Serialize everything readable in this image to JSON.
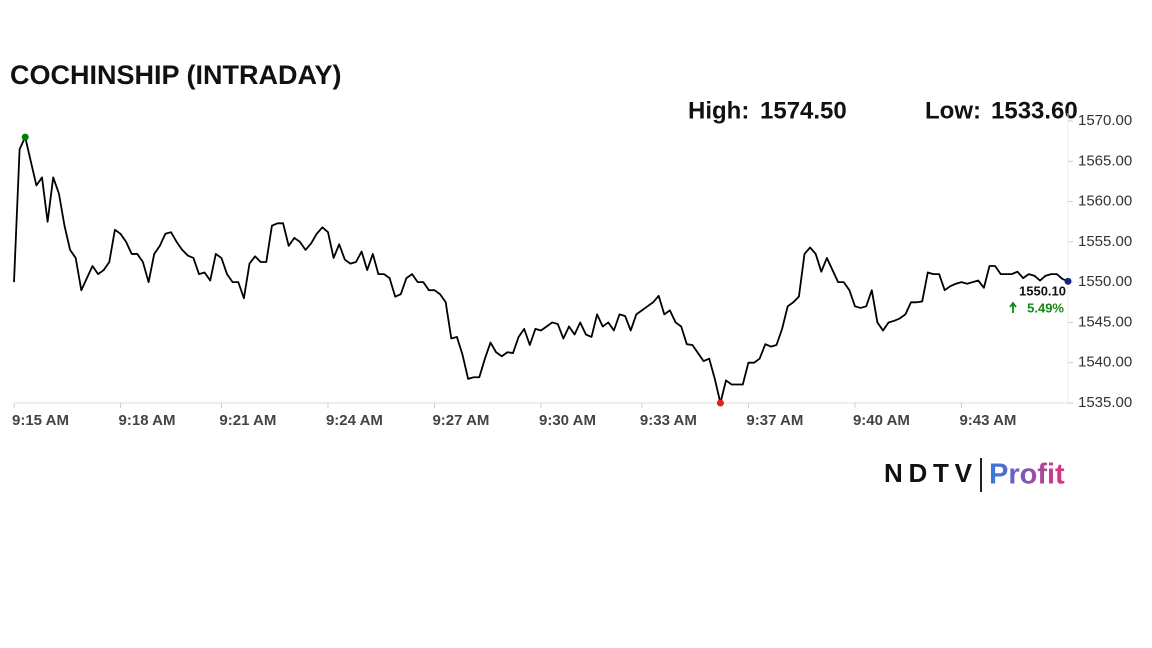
{
  "chart_data": {
    "type": "line",
    "title": "COCHINSHIP (INTRADAY)",
    "high": {
      "label": "High:",
      "value": "1574.50"
    },
    "low": {
      "label": "Low:",
      "value": "1533.60"
    },
    "last_price": "1550.10",
    "change": "5.49%",
    "brand": {
      "left": "NDTV",
      "right": "Profit"
    },
    "color": "#000000",
    "values": [
      1550,
      1566.5,
      1568,
      1565,
      1562,
      1563,
      1557.5,
      1563,
      1561,
      1557,
      1554,
      1553,
      1549,
      1550.5,
      1552,
      1551,
      1551.5,
      1552.5,
      1556.5,
      1556,
      1555,
      1553.5,
      1553.5,
      1552.5,
      1550,
      1553.5,
      1554.5,
      1556,
      1556.2,
      1555,
      1554,
      1553.3,
      1553,
      1551,
      1551.2,
      1550.2,
      1553.5,
      1553,
      1551,
      1550,
      1550,
      1548,
      1552.3,
      1553.2,
      1552.5,
      1552.5,
      1557,
      1557.3,
      1557.3,
      1554.5,
      1555.5,
      1555,
      1554,
      1554.8,
      1556,
      1556.8,
      1556.2,
      1553,
      1554.7,
      1552.8,
      1552.3,
      1552.5,
      1553.8,
      1551.5,
      1553.5,
      1551,
      1551,
      1550.5,
      1548.2,
      1548.5,
      1550.5,
      1551,
      1550,
      1550,
      1549,
      1549,
      1548.5,
      1547.5,
      1543,
      1543.2,
      1541,
      1538,
      1538.2,
      1538.2,
      1540.5,
      1542.5,
      1541.3,
      1540.8,
      1541.3,
      1541.2,
      1543.2,
      1544.2,
      1542.2,
      1544.2,
      1544,
      1544.5,
      1545,
      1544.8,
      1543,
      1544.5,
      1543.5,
      1545,
      1543.5,
      1543.2,
      1546,
      1544.5,
      1545,
      1544,
      1546,
      1545.8,
      1544,
      1546,
      1546.5,
      1547,
      1547.5,
      1548.3,
      1546,
      1546.5,
      1545,
      1544.5,
      1542.3,
      1542.2,
      1541.2,
      1540.2,
      1540.5,
      1538,
      1535,
      1537.8,
      1537.3,
      1537.3,
      1537.3,
      1540,
      1540,
      1540.5,
      1542.3,
      1542,
      1542.2,
      1544.2,
      1547,
      1547.5,
      1548.2,
      1553.5,
      1554.3,
      1553.5,
      1551.3,
      1553,
      1551.5,
      1550,
      1550,
      1549,
      1547,
      1546.8,
      1547,
      1549,
      1545,
      1544,
      1545,
      1545.2,
      1545.5,
      1546,
      1547.5,
      1547.5,
      1547.6,
      1551.2,
      1551,
      1551,
      1549,
      1549.5,
      1549.8,
      1550,
      1549.8,
      1550,
      1550.2,
      1549.3,
      1552,
      1552,
      1551,
      1551,
      1551,
      1551.3,
      1550.5,
      1551,
      1550.8,
      1550.2,
      1550.8,
      1551,
      1551,
      1550.4,
      1550.1
    ],
    "xlim": [
      0,
      188
    ],
    "xticks": [
      {
        "value": 0,
        "label": "9:15 AM"
      },
      {
        "value": 19,
        "label": "9:18 AM"
      },
      {
        "value": 37,
        "label": "9:21 AM"
      },
      {
        "value": 56,
        "label": "9:24 AM"
      },
      {
        "value": 75,
        "label": "9:27 AM"
      },
      {
        "value": 94,
        "label": "9:30 AM"
      },
      {
        "value": 112,
        "label": "9:33 AM"
      },
      {
        "value": 131,
        "label": "9:37 AM"
      },
      {
        "value": 150,
        "label": "9:40 AM"
      },
      {
        "value": 169,
        "label": "9:43 AM"
      }
    ],
    "ylim": [
      1535,
      1570
    ],
    "yticks": [
      {
        "value": 1535,
        "label": "1535.00"
      },
      {
        "value": 1540,
        "label": "1540.00"
      },
      {
        "value": 1545,
        "label": "1545.00"
      },
      {
        "value": 1550,
        "label": "1550.00"
      },
      {
        "value": 1555,
        "label": "1555.00"
      },
      {
        "value": 1560,
        "label": "1560.00"
      },
      {
        "value": 1565,
        "label": "1565.00"
      },
      {
        "value": 1570,
        "label": "1570.00"
      }
    ],
    "high_color": "#008000",
    "low_color": "#e02020",
    "last_color": "#1a237e",
    "change_color": "#138a13"
  }
}
